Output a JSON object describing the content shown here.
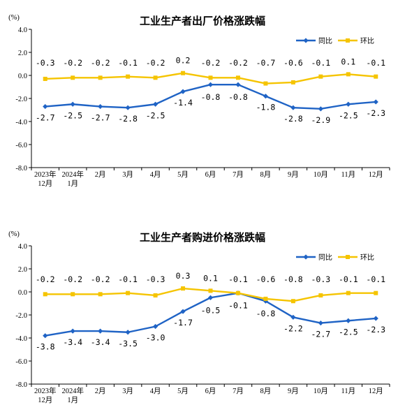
{
  "colors": {
    "yoy": "#1f63c5",
    "mom": "#f5c400",
    "axis": "#000000"
  },
  "chart_data": [
    {
      "type": "line",
      "title": "工业生产者出厂价格涨跌幅",
      "unit": "(%)",
      "yticks": [
        "4.0",
        "2.0",
        "0.0",
        "-2.0",
        "-4.0",
        "-6.0",
        "-8.0"
      ],
      "ylim": [
        -8,
        4
      ],
      "categories": [
        [
          "2023年",
          "12月"
        ],
        [
          "2024年",
          "1月"
        ],
        [
          "2月"
        ],
        [
          "3月"
        ],
        [
          "4月"
        ],
        [
          "5月"
        ],
        [
          "6月"
        ],
        [
          "7月"
        ],
        [
          "8月"
        ],
        [
          "9月"
        ],
        [
          "10月"
        ],
        [
          "11月"
        ],
        [
          "12月"
        ]
      ],
      "legend": [
        "同比",
        "环比"
      ],
      "series": [
        {
          "name": "同比",
          "values": [
            -2.7,
            -2.5,
            -2.7,
            -2.8,
            -2.5,
            -1.4,
            -0.8,
            -0.8,
            -1.8,
            -2.8,
            -2.9,
            -2.5,
            -2.3
          ],
          "labels": [
            "-2.7",
            "-2.5",
            "-2.7",
            "-2.8",
            "-2.5",
            "-1.4",
            "-0.8",
            "-0.8",
            "-1.8",
            "-2.8",
            "-2.9",
            "-2.5",
            "-2.3"
          ]
        },
        {
          "name": "环比",
          "values": [
            -0.3,
            -0.2,
            -0.2,
            -0.1,
            -0.2,
            0.2,
            -0.2,
            -0.2,
            -0.7,
            -0.6,
            -0.1,
            0.1,
            -0.1
          ],
          "labels": [
            "-0.3",
            "-0.2",
            "-0.2",
            "-0.1",
            "-0.2",
            "0.2",
            "-0.2",
            "-0.2",
            "-0.7",
            "-0.6",
            "-0.1",
            "0.1",
            "-0.1"
          ]
        }
      ]
    },
    {
      "type": "line",
      "title": "工业生产者购进价格涨跌幅",
      "unit": "(%)",
      "yticks": [
        "4.0",
        "2.0",
        "0.0",
        "-2.0",
        "-4.0",
        "-6.0",
        "-8.0"
      ],
      "ylim": [
        -8,
        4
      ],
      "categories": [
        [
          "2023年",
          "12月"
        ],
        [
          "2024年",
          "1月"
        ],
        [
          "2月"
        ],
        [
          "3月"
        ],
        [
          "4月"
        ],
        [
          "5月"
        ],
        [
          "6月"
        ],
        [
          "7月"
        ],
        [
          "8月"
        ],
        [
          "9月"
        ],
        [
          "10月"
        ],
        [
          "11月"
        ],
        [
          "12月"
        ]
      ],
      "legend": [
        "同比",
        "环比"
      ],
      "series": [
        {
          "name": "同比",
          "values": [
            -3.8,
            -3.4,
            -3.4,
            -3.5,
            -3.0,
            -1.7,
            -0.5,
            -0.1,
            -0.8,
            -2.2,
            -2.7,
            -2.5,
            -2.3
          ],
          "labels": [
            "-3.8",
            "-3.4",
            "-3.4",
            "-3.5",
            "-3.0",
            "-1.7",
            "-0.5",
            "-0.1",
            "-0.8",
            "-2.2",
            "-2.7",
            "-2.5",
            "-2.3"
          ]
        },
        {
          "name": "环比",
          "values": [
            -0.2,
            -0.2,
            -0.2,
            -0.1,
            -0.3,
            0.3,
            0.1,
            -0.1,
            -0.6,
            -0.8,
            -0.3,
            -0.1,
            -0.1
          ],
          "labels": [
            "-0.2",
            "-0.2",
            "-0.2",
            "-0.1",
            "-0.3",
            "0.3",
            "0.1",
            "-0.1",
            "-0.6",
            "-0.8",
            "-0.3",
            "-0.1",
            "-0.1"
          ]
        }
      ]
    }
  ]
}
